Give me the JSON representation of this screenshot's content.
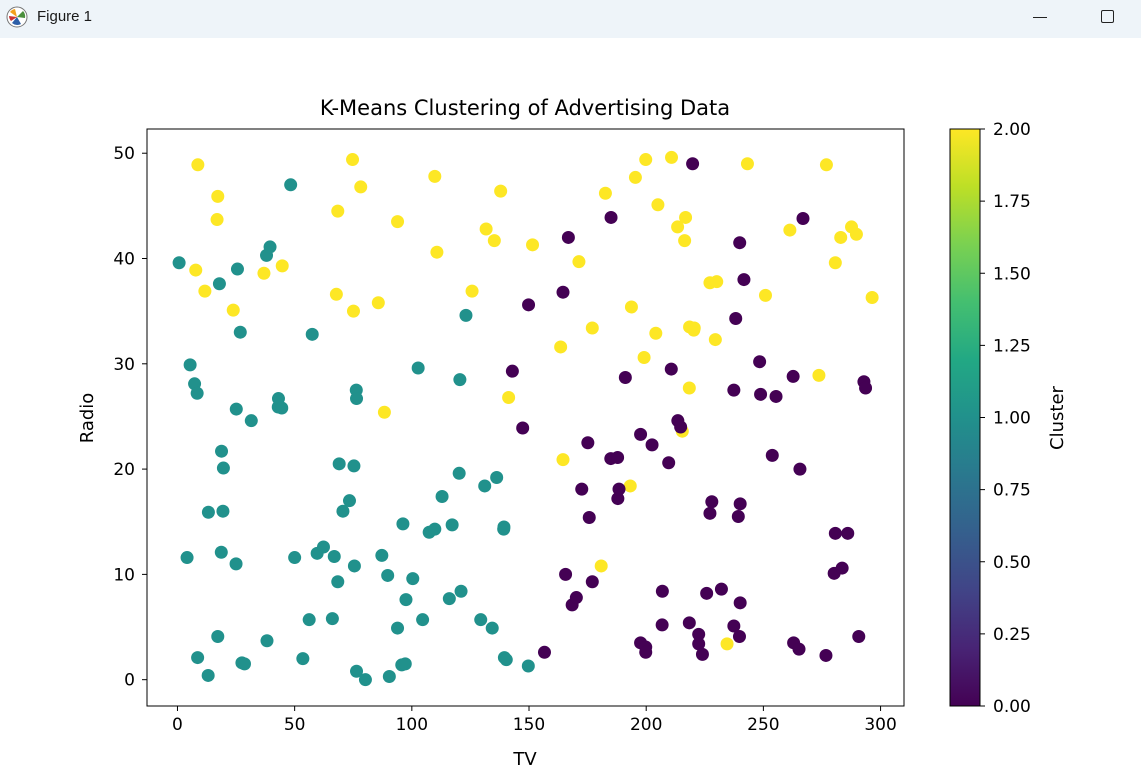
{
  "window": {
    "title": "Figure 1",
    "app_icon": "matplotlib-icon",
    "controls": [
      "minimize-icon",
      "maximize-icon"
    ]
  },
  "chart_data": {
    "type": "scatter",
    "title": "K-Means Clustering of Advertising Data",
    "xlabel": "TV",
    "ylabel": "Radio",
    "xlim": [
      -13,
      310
    ],
    "ylim": [
      -2.5,
      52.3
    ],
    "xticks": [
      0,
      50,
      100,
      150,
      200,
      250,
      300
    ],
    "yticks": [
      0,
      10,
      20,
      30,
      40,
      50
    ],
    "grid": false,
    "colorbar": {
      "label": "Cluster",
      "range": [
        0,
        2
      ],
      "ticks": [
        "0.00",
        "0.25",
        "0.50",
        "0.75",
        "1.00",
        "1.25",
        "1.50",
        "1.75",
        "2.00"
      ],
      "colormap": "viridis"
    },
    "cluster_colors": {
      "0": "#440154",
      "1": "#21918c",
      "2": "#fde725"
    },
    "points": [
      {
        "x": 0.7,
        "y": 39.6,
        "c": 1
      },
      {
        "x": 4.1,
        "y": 11.6,
        "c": 1
      },
      {
        "x": 5.4,
        "y": 29.9,
        "c": 1
      },
      {
        "x": 7.3,
        "y": 28.1,
        "c": 1
      },
      {
        "x": 8.4,
        "y": 27.2,
        "c": 1
      },
      {
        "x": 8.6,
        "y": 2.1,
        "c": 1
      },
      {
        "x": 13.1,
        "y": 0.4,
        "c": 1
      },
      {
        "x": 13.2,
        "y": 15.9,
        "c": 1
      },
      {
        "x": 17.2,
        "y": 4.1,
        "c": 1
      },
      {
        "x": 17.9,
        "y": 37.6,
        "c": 1
      },
      {
        "x": 18.7,
        "y": 12.1,
        "c": 1
      },
      {
        "x": 18.8,
        "y": 21.7,
        "c": 1
      },
      {
        "x": 19.4,
        "y": 16.0,
        "c": 1
      },
      {
        "x": 19.6,
        "y": 20.1,
        "c": 1
      },
      {
        "x": 25.0,
        "y": 11.0,
        "c": 1
      },
      {
        "x": 25.1,
        "y": 25.7,
        "c": 1
      },
      {
        "x": 25.6,
        "y": 39.0,
        "c": 1
      },
      {
        "x": 26.8,
        "y": 33.0,
        "c": 1
      },
      {
        "x": 27.5,
        "y": 1.6,
        "c": 1
      },
      {
        "x": 28.6,
        "y": 1.5,
        "c": 1
      },
      {
        "x": 31.5,
        "y": 24.6,
        "c": 1
      },
      {
        "x": 38.0,
        "y": 40.3,
        "c": 1
      },
      {
        "x": 38.2,
        "y": 3.7,
        "c": 1
      },
      {
        "x": 39.5,
        "y": 41.1,
        "c": 1
      },
      {
        "x": 43.0,
        "y": 25.9,
        "c": 1
      },
      {
        "x": 43.1,
        "y": 26.7,
        "c": 1
      },
      {
        "x": 44.5,
        "y": 25.8,
        "c": 1
      },
      {
        "x": 48.3,
        "y": 47.0,
        "c": 1
      },
      {
        "x": 50.0,
        "y": 11.6,
        "c": 1
      },
      {
        "x": 53.5,
        "y": 2.0,
        "c": 1
      },
      {
        "x": 56.2,
        "y": 5.7,
        "c": 1
      },
      {
        "x": 57.5,
        "y": 32.8,
        "c": 1
      },
      {
        "x": 59.6,
        "y": 12.0,
        "c": 1
      },
      {
        "x": 62.3,
        "y": 12.6,
        "c": 1
      },
      {
        "x": 66.1,
        "y": 5.8,
        "c": 1
      },
      {
        "x": 66.9,
        "y": 11.7,
        "c": 1
      },
      {
        "x": 68.4,
        "y": 9.3,
        "c": 1
      },
      {
        "x": 69.0,
        "y": 20.5,
        "c": 1
      },
      {
        "x": 70.6,
        "y": 16.0,
        "c": 1
      },
      {
        "x": 73.4,
        "y": 17.0,
        "c": 1
      },
      {
        "x": 75.1,
        "y": 35.0,
        "c": 2
      },
      {
        "x": 75.3,
        "y": 20.3,
        "c": 1
      },
      {
        "x": 75.5,
        "y": 10.8,
        "c": 1
      },
      {
        "x": 76.3,
        "y": 27.5,
        "c": 1
      },
      {
        "x": 76.4,
        "y": 0.8,
        "c": 1
      },
      {
        "x": 76.4,
        "y": 26.7,
        "c": 1
      },
      {
        "x": 80.2,
        "y": 0.0,
        "c": 1
      },
      {
        "x": 87.2,
        "y": 11.8,
        "c": 1
      },
      {
        "x": 89.7,
        "y": 9.9,
        "c": 1
      },
      {
        "x": 90.4,
        "y": 0.3,
        "c": 1
      },
      {
        "x": 93.9,
        "y": 4.9,
        "c": 1
      },
      {
        "x": 95.7,
        "y": 1.4,
        "c": 1
      },
      {
        "x": 96.2,
        "y": 14.8,
        "c": 1
      },
      {
        "x": 97.2,
        "y": 1.5,
        "c": 1
      },
      {
        "x": 97.5,
        "y": 7.6,
        "c": 1
      },
      {
        "x": 100.4,
        "y": 9.6,
        "c": 1
      },
      {
        "x": 102.7,
        "y": 29.6,
        "c": 1
      },
      {
        "x": 104.6,
        "y": 5.7,
        "c": 1
      },
      {
        "x": 107.4,
        "y": 14.0,
        "c": 1
      },
      {
        "x": 109.8,
        "y": 14.3,
        "c": 1
      },
      {
        "x": 112.9,
        "y": 17.4,
        "c": 1
      },
      {
        "x": 116.0,
        "y": 7.7,
        "c": 1
      },
      {
        "x": 117.2,
        "y": 14.7,
        "c": 1
      },
      {
        "x": 120.2,
        "y": 19.6,
        "c": 1
      },
      {
        "x": 120.5,
        "y": 28.5,
        "c": 1
      },
      {
        "x": 121.0,
        "y": 8.4,
        "c": 1
      },
      {
        "x": 123.1,
        "y": 34.6,
        "c": 1
      },
      {
        "x": 129.4,
        "y": 5.7,
        "c": 1
      },
      {
        "x": 131.1,
        "y": 18.4,
        "c": 1
      },
      {
        "x": 134.3,
        "y": 4.9,
        "c": 1
      },
      {
        "x": 136.2,
        "y": 19.2,
        "c": 1
      },
      {
        "x": 139.2,
        "y": 14.3,
        "c": 1
      },
      {
        "x": 139.3,
        "y": 14.5,
        "c": 1
      },
      {
        "x": 139.5,
        "y": 2.1,
        "c": 1
      },
      {
        "x": 140.3,
        "y": 1.9,
        "c": 1
      },
      {
        "x": 149.7,
        "y": 1.3,
        "c": 1
      },
      {
        "x": 7.8,
        "y": 38.9,
        "c": 2
      },
      {
        "x": 8.7,
        "y": 48.9,
        "c": 2
      },
      {
        "x": 11.7,
        "y": 36.9,
        "c": 2
      },
      {
        "x": 16.9,
        "y": 43.7,
        "c": 2
      },
      {
        "x": 17.2,
        "y": 45.9,
        "c": 2
      },
      {
        "x": 23.8,
        "y": 35.1,
        "c": 2
      },
      {
        "x": 36.9,
        "y": 38.6,
        "c": 2
      },
      {
        "x": 44.7,
        "y": 39.3,
        "c": 2
      },
      {
        "x": 67.8,
        "y": 36.6,
        "c": 2
      },
      {
        "x": 68.4,
        "y": 44.5,
        "c": 2
      },
      {
        "x": 74.7,
        "y": 49.4,
        "c": 2
      },
      {
        "x": 78.2,
        "y": 46.8,
        "c": 2
      },
      {
        "x": 85.7,
        "y": 35.8,
        "c": 2
      },
      {
        "x": 88.3,
        "y": 25.4,
        "c": 2
      },
      {
        "x": 93.9,
        "y": 43.5,
        "c": 2
      },
      {
        "x": 109.8,
        "y": 47.8,
        "c": 2
      },
      {
        "x": 110.7,
        "y": 40.6,
        "c": 2
      },
      {
        "x": 125.7,
        "y": 36.9,
        "c": 2
      },
      {
        "x": 131.7,
        "y": 42.8,
        "c": 2
      },
      {
        "x": 135.2,
        "y": 41.7,
        "c": 2
      },
      {
        "x": 137.9,
        "y": 46.4,
        "c": 2
      },
      {
        "x": 141.3,
        "y": 26.8,
        "c": 2
      },
      {
        "x": 151.5,
        "y": 41.3,
        "c": 2
      },
      {
        "x": 163.5,
        "y": 31.6,
        "c": 2
      },
      {
        "x": 164.5,
        "y": 20.9,
        "c": 2
      },
      {
        "x": 171.3,
        "y": 39.7,
        "c": 2
      },
      {
        "x": 177.0,
        "y": 33.4,
        "c": 2
      },
      {
        "x": 180.8,
        "y": 10.8,
        "c": 2
      },
      {
        "x": 182.6,
        "y": 46.2,
        "c": 2
      },
      {
        "x": 193.2,
        "y": 18.4,
        "c": 2
      },
      {
        "x": 193.7,
        "y": 35.4,
        "c": 2
      },
      {
        "x": 195.4,
        "y": 47.7,
        "c": 2
      },
      {
        "x": 199.1,
        "y": 30.6,
        "c": 2
      },
      {
        "x": 199.8,
        "y": 49.4,
        "c": 2
      },
      {
        "x": 204.1,
        "y": 32.9,
        "c": 2
      },
      {
        "x": 205.0,
        "y": 45.1,
        "c": 2
      },
      {
        "x": 210.8,
        "y": 49.6,
        "c": 2
      },
      {
        "x": 213.4,
        "y": 43.0,
        "c": 2
      },
      {
        "x": 215.4,
        "y": 23.6,
        "c": 2
      },
      {
        "x": 216.4,
        "y": 41.7,
        "c": 2
      },
      {
        "x": 216.8,
        "y": 43.9,
        "c": 2
      },
      {
        "x": 218.4,
        "y": 27.7,
        "c": 2
      },
      {
        "x": 218.5,
        "y": 33.5,
        "c": 2
      },
      {
        "x": 220.3,
        "y": 33.2,
        "c": 2
      },
      {
        "x": 220.5,
        "y": 33.4,
        "c": 2
      },
      {
        "x": 227.2,
        "y": 37.7,
        "c": 2
      },
      {
        "x": 229.5,
        "y": 32.3,
        "c": 2
      },
      {
        "x": 230.1,
        "y": 37.8,
        "c": 2
      },
      {
        "x": 234.5,
        "y": 3.4,
        "c": 2
      },
      {
        "x": 243.2,
        "y": 49.0,
        "c": 2
      },
      {
        "x": 250.9,
        "y": 36.5,
        "c": 2
      },
      {
        "x": 261.3,
        "y": 42.7,
        "c": 2
      },
      {
        "x": 273.7,
        "y": 28.9,
        "c": 2
      },
      {
        "x": 276.9,
        "y": 48.9,
        "c": 2
      },
      {
        "x": 280.7,
        "y": 39.6,
        "c": 2
      },
      {
        "x": 283.0,
        "y": 42.0,
        "c": 2
      },
      {
        "x": 287.6,
        "y": 43.0,
        "c": 2
      },
      {
        "x": 289.7,
        "y": 42.3,
        "c": 2
      },
      {
        "x": 296.4,
        "y": 36.3,
        "c": 2
      },
      {
        "x": 142.9,
        "y": 29.3,
        "c": 0
      },
      {
        "x": 147.3,
        "y": 23.9,
        "c": 0
      },
      {
        "x": 149.8,
        "y": 35.6,
        "c": 0
      },
      {
        "x": 156.6,
        "y": 2.6,
        "c": 0
      },
      {
        "x": 164.5,
        "y": 36.8,
        "c": 0
      },
      {
        "x": 165.6,
        "y": 10.0,
        "c": 0
      },
      {
        "x": 166.8,
        "y": 42.0,
        "c": 0
      },
      {
        "x": 168.4,
        "y": 7.1,
        "c": 0
      },
      {
        "x": 170.2,
        "y": 7.8,
        "c": 0
      },
      {
        "x": 172.5,
        "y": 18.1,
        "c": 0
      },
      {
        "x": 175.1,
        "y": 22.5,
        "c": 0
      },
      {
        "x": 175.7,
        "y": 15.4,
        "c": 0
      },
      {
        "x": 177.0,
        "y": 9.3,
        "c": 0
      },
      {
        "x": 184.9,
        "y": 21.0,
        "c": 0
      },
      {
        "x": 185.0,
        "y": 43.9,
        "c": 0
      },
      {
        "x": 187.8,
        "y": 21.1,
        "c": 0
      },
      {
        "x": 187.9,
        "y": 17.2,
        "c": 0
      },
      {
        "x": 188.4,
        "y": 18.1,
        "c": 0
      },
      {
        "x": 191.1,
        "y": 28.7,
        "c": 0
      },
      {
        "x": 197.6,
        "y": 23.3,
        "c": 0
      },
      {
        "x": 197.6,
        "y": 3.5,
        "c": 0
      },
      {
        "x": 199.8,
        "y": 3.1,
        "c": 0
      },
      {
        "x": 199.8,
        "y": 2.6,
        "c": 0
      },
      {
        "x": 202.5,
        "y": 22.3,
        "c": 0
      },
      {
        "x": 206.8,
        "y": 5.2,
        "c": 0
      },
      {
        "x": 206.9,
        "y": 8.4,
        "c": 0
      },
      {
        "x": 209.6,
        "y": 20.6,
        "c": 0
      },
      {
        "x": 210.7,
        "y": 29.5,
        "c": 0
      },
      {
        "x": 213.5,
        "y": 24.6,
        "c": 0
      },
      {
        "x": 214.7,
        "y": 24.0,
        "c": 0
      },
      {
        "x": 218.4,
        "y": 5.4,
        "c": 0
      },
      {
        "x": 219.8,
        "y": 49.0,
        "c": 0
      },
      {
        "x": 222.4,
        "y": 4.3,
        "c": 0
      },
      {
        "x": 222.4,
        "y": 3.4,
        "c": 0
      },
      {
        "x": 224.0,
        "y": 2.4,
        "c": 0
      },
      {
        "x": 225.8,
        "y": 8.2,
        "c": 0
      },
      {
        "x": 227.2,
        "y": 15.8,
        "c": 0
      },
      {
        "x": 228.0,
        "y": 16.9,
        "c": 0
      },
      {
        "x": 232.1,
        "y": 8.6,
        "c": 0
      },
      {
        "x": 237.4,
        "y": 5.1,
        "c": 0
      },
      {
        "x": 237.4,
        "y": 27.5,
        "c": 0
      },
      {
        "x": 238.2,
        "y": 34.3,
        "c": 0
      },
      {
        "x": 239.3,
        "y": 15.5,
        "c": 0
      },
      {
        "x": 239.8,
        "y": 4.1,
        "c": 0
      },
      {
        "x": 239.9,
        "y": 41.5,
        "c": 0
      },
      {
        "x": 240.1,
        "y": 7.3,
        "c": 0
      },
      {
        "x": 240.1,
        "y": 16.7,
        "c": 0
      },
      {
        "x": 241.7,
        "y": 38.0,
        "c": 0
      },
      {
        "x": 248.4,
        "y": 30.2,
        "c": 0
      },
      {
        "x": 248.8,
        "y": 27.1,
        "c": 0
      },
      {
        "x": 253.8,
        "y": 21.3,
        "c": 0
      },
      {
        "x": 255.4,
        "y": 26.9,
        "c": 0
      },
      {
        "x": 262.7,
        "y": 28.8,
        "c": 0
      },
      {
        "x": 262.9,
        "y": 3.5,
        "c": 0
      },
      {
        "x": 265.2,
        "y": 2.9,
        "c": 0
      },
      {
        "x": 265.6,
        "y": 20.0,
        "c": 0
      },
      {
        "x": 266.9,
        "y": 43.8,
        "c": 0
      },
      {
        "x": 276.7,
        "y": 2.3,
        "c": 0
      },
      {
        "x": 280.2,
        "y": 10.1,
        "c": 0
      },
      {
        "x": 280.7,
        "y": 13.9,
        "c": 0
      },
      {
        "x": 283.6,
        "y": 10.6,
        "c": 0
      },
      {
        "x": 286.0,
        "y": 13.9,
        "c": 0
      },
      {
        "x": 290.7,
        "y": 4.1,
        "c": 0
      },
      {
        "x": 292.9,
        "y": 28.3,
        "c": 0
      },
      {
        "x": 293.6,
        "y": 27.7,
        "c": 0
      }
    ]
  }
}
